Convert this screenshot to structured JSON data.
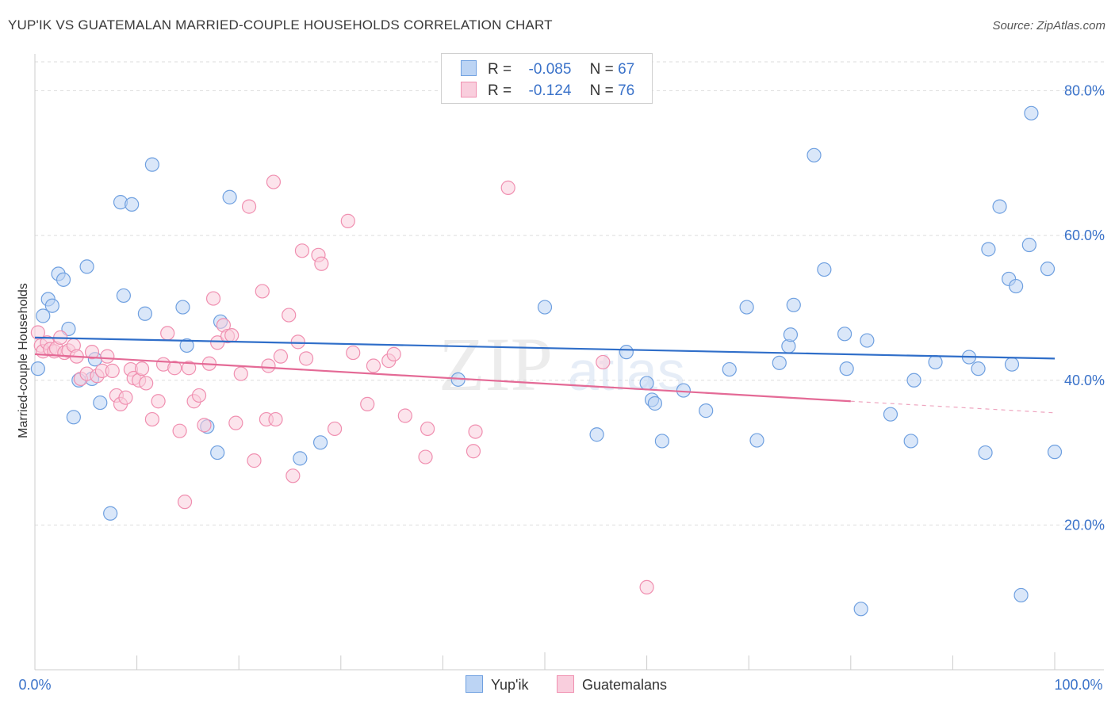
{
  "header": {
    "title": "YUP'IK VS GUATEMALAN MARRIED-COUPLE HOUSEHOLDS CORRELATION CHART",
    "source": "Source: ZipAtlas.com"
  },
  "legend": {
    "r_label": "R =",
    "n_label": "N =",
    "rows": [
      {
        "r": "-0.085",
        "n": "67",
        "color": "#6fa0e0"
      },
      {
        "r": "-0.124",
        "n": "76",
        "color": "#f08fb0"
      }
    ]
  },
  "bottom_legend": [
    {
      "label": "Yup'ik",
      "color": "#6fa0e0"
    },
    {
      "label": "Guatemalans",
      "color": "#f08fb0"
    }
  ],
  "watermark": {
    "zip": "ZIP",
    "atlas": "atlas"
  },
  "chart_data": {
    "type": "scatter",
    "title": "YUP'IK VS GUATEMALAN MARRIED-COUPLE HOUSEHOLDS CORRELATION CHART",
    "xlabel": "",
    "ylabel": "Married-couple Households",
    "x_tick_labels": [
      "0.0%",
      "100.0%"
    ],
    "y_tick_labels": [
      "20.0%",
      "40.0%",
      "60.0%",
      "80.0%"
    ],
    "xlim": [
      0,
      100
    ],
    "ylim": [
      0,
      84
    ],
    "grid": true,
    "series": [
      {
        "name": "Yup'ik",
        "color": "#6fa0e0",
        "trend": {
          "x": [
            0,
            100
          ],
          "y": [
            45.9,
            43.0
          ]
        },
        "points": [
          [
            0.3,
            41.6
          ],
          [
            0.8,
            48.9
          ],
          [
            1.3,
            51.2
          ],
          [
            1.7,
            50.3
          ],
          [
            2.3,
            54.7
          ],
          [
            2.8,
            53.9
          ],
          [
            3.3,
            47.1
          ],
          [
            3.8,
            34.9
          ],
          [
            4.3,
            40.0
          ],
          [
            5.1,
            55.7
          ],
          [
            5.6,
            40.2
          ],
          [
            5.9,
            42.9
          ],
          [
            6.4,
            36.9
          ],
          [
            7.4,
            21.6
          ],
          [
            8.4,
            64.6
          ],
          [
            8.7,
            51.7
          ],
          [
            9.5,
            64.3
          ],
          [
            10.8,
            49.2
          ],
          [
            11.5,
            69.8
          ],
          [
            14.5,
            50.1
          ],
          [
            14.9,
            44.8
          ],
          [
            16.9,
            33.6
          ],
          [
            17.9,
            30.0
          ],
          [
            18.2,
            48.1
          ],
          [
            19.1,
            65.3
          ],
          [
            26.0,
            29.2
          ],
          [
            28.0,
            31.4
          ],
          [
            41.5,
            40.1
          ],
          [
            50.0,
            50.1
          ],
          [
            55.1,
            32.5
          ],
          [
            58.0,
            43.9
          ],
          [
            60.0,
            39.6
          ],
          [
            60.5,
            37.3
          ],
          [
            60.8,
            36.8
          ],
          [
            61.5,
            31.6
          ],
          [
            63.6,
            38.6
          ],
          [
            65.8,
            35.8
          ],
          [
            68.1,
            41.5
          ],
          [
            69.8,
            50.1
          ],
          [
            70.8,
            31.7
          ],
          [
            73.0,
            42.4
          ],
          [
            73.9,
            44.7
          ],
          [
            74.1,
            46.3
          ],
          [
            74.4,
            50.4
          ],
          [
            76.4,
            71.1
          ],
          [
            77.4,
            55.3
          ],
          [
            79.4,
            46.4
          ],
          [
            79.6,
            41.6
          ],
          [
            81.0,
            8.4
          ],
          [
            81.6,
            45.5
          ],
          [
            83.9,
            35.3
          ],
          [
            85.9,
            31.6
          ],
          [
            86.2,
            40.0
          ],
          [
            88.3,
            42.5
          ],
          [
            91.6,
            43.2
          ],
          [
            92.5,
            41.6
          ],
          [
            93.2,
            30.0
          ],
          [
            93.5,
            58.1
          ],
          [
            94.6,
            64.0
          ],
          [
            95.5,
            54.0
          ],
          [
            95.8,
            42.2
          ],
          [
            96.2,
            53.0
          ],
          [
            96.7,
            10.3
          ],
          [
            97.5,
            58.7
          ],
          [
            97.7,
            76.9
          ],
          [
            99.3,
            55.4
          ],
          [
            100.0,
            30.1
          ]
        ]
      },
      {
        "name": "Guatemalans",
        "color": "#f08fb0",
        "trend": {
          "x": [
            0,
            80
          ],
          "y": [
            43.6,
            37.1
          ]
        },
        "trend_dashed": {
          "x": [
            80,
            100
          ],
          "y": [
            37.1,
            35.5
          ]
        },
        "points": [
          [
            0.3,
            46.6
          ],
          [
            0.6,
            44.8
          ],
          [
            0.8,
            44.0
          ],
          [
            1.2,
            45.2
          ],
          [
            1.5,
            44.3
          ],
          [
            1.9,
            44.0
          ],
          [
            2.1,
            44.4
          ],
          [
            2.5,
            45.9
          ],
          [
            2.9,
            43.8
          ],
          [
            3.3,
            44.1
          ],
          [
            3.8,
            44.8
          ],
          [
            4.1,
            43.3
          ],
          [
            4.5,
            40.2
          ],
          [
            5.1,
            40.9
          ],
          [
            5.6,
            43.9
          ],
          [
            6.1,
            40.6
          ],
          [
            6.6,
            41.3
          ],
          [
            7.1,
            43.3
          ],
          [
            7.6,
            41.3
          ],
          [
            8.0,
            37.9
          ],
          [
            8.4,
            36.7
          ],
          [
            8.9,
            37.6
          ],
          [
            9.4,
            41.5
          ],
          [
            9.7,
            40.3
          ],
          [
            10.2,
            40.0
          ],
          [
            10.5,
            41.6
          ],
          [
            10.9,
            39.6
          ],
          [
            11.5,
            34.6
          ],
          [
            12.1,
            37.1
          ],
          [
            12.6,
            42.2
          ],
          [
            13.0,
            46.5
          ],
          [
            13.7,
            41.7
          ],
          [
            14.2,
            33.0
          ],
          [
            14.7,
            23.2
          ],
          [
            15.1,
            41.7
          ],
          [
            15.6,
            37.1
          ],
          [
            16.1,
            37.9
          ],
          [
            16.6,
            33.8
          ],
          [
            17.1,
            42.3
          ],
          [
            17.5,
            51.3
          ],
          [
            17.9,
            45.2
          ],
          [
            18.5,
            47.6
          ],
          [
            18.9,
            46.1
          ],
          [
            19.3,
            46.2
          ],
          [
            19.7,
            34.1
          ],
          [
            20.2,
            40.9
          ],
          [
            21.0,
            64.0
          ],
          [
            21.5,
            28.9
          ],
          [
            22.3,
            52.3
          ],
          [
            22.7,
            34.6
          ],
          [
            22.9,
            42.0
          ],
          [
            23.4,
            67.4
          ],
          [
            23.6,
            34.6
          ],
          [
            24.1,
            43.3
          ],
          [
            24.9,
            49.0
          ],
          [
            25.3,
            26.8
          ],
          [
            25.8,
            45.3
          ],
          [
            26.2,
            57.9
          ],
          [
            26.6,
            43.0
          ],
          [
            27.8,
            57.3
          ],
          [
            28.1,
            56.1
          ],
          [
            29.4,
            33.3
          ],
          [
            30.7,
            62.0
          ],
          [
            31.2,
            43.8
          ],
          [
            32.6,
            36.7
          ],
          [
            33.2,
            42.0
          ],
          [
            34.7,
            42.7
          ],
          [
            35.2,
            43.6
          ],
          [
            36.3,
            35.1
          ],
          [
            38.3,
            29.4
          ],
          [
            38.5,
            33.3
          ],
          [
            43.0,
            30.2
          ],
          [
            43.2,
            32.9
          ],
          [
            46.4,
            66.6
          ],
          [
            55.7,
            42.5
          ],
          [
            60.0,
            11.4
          ]
        ]
      }
    ]
  }
}
